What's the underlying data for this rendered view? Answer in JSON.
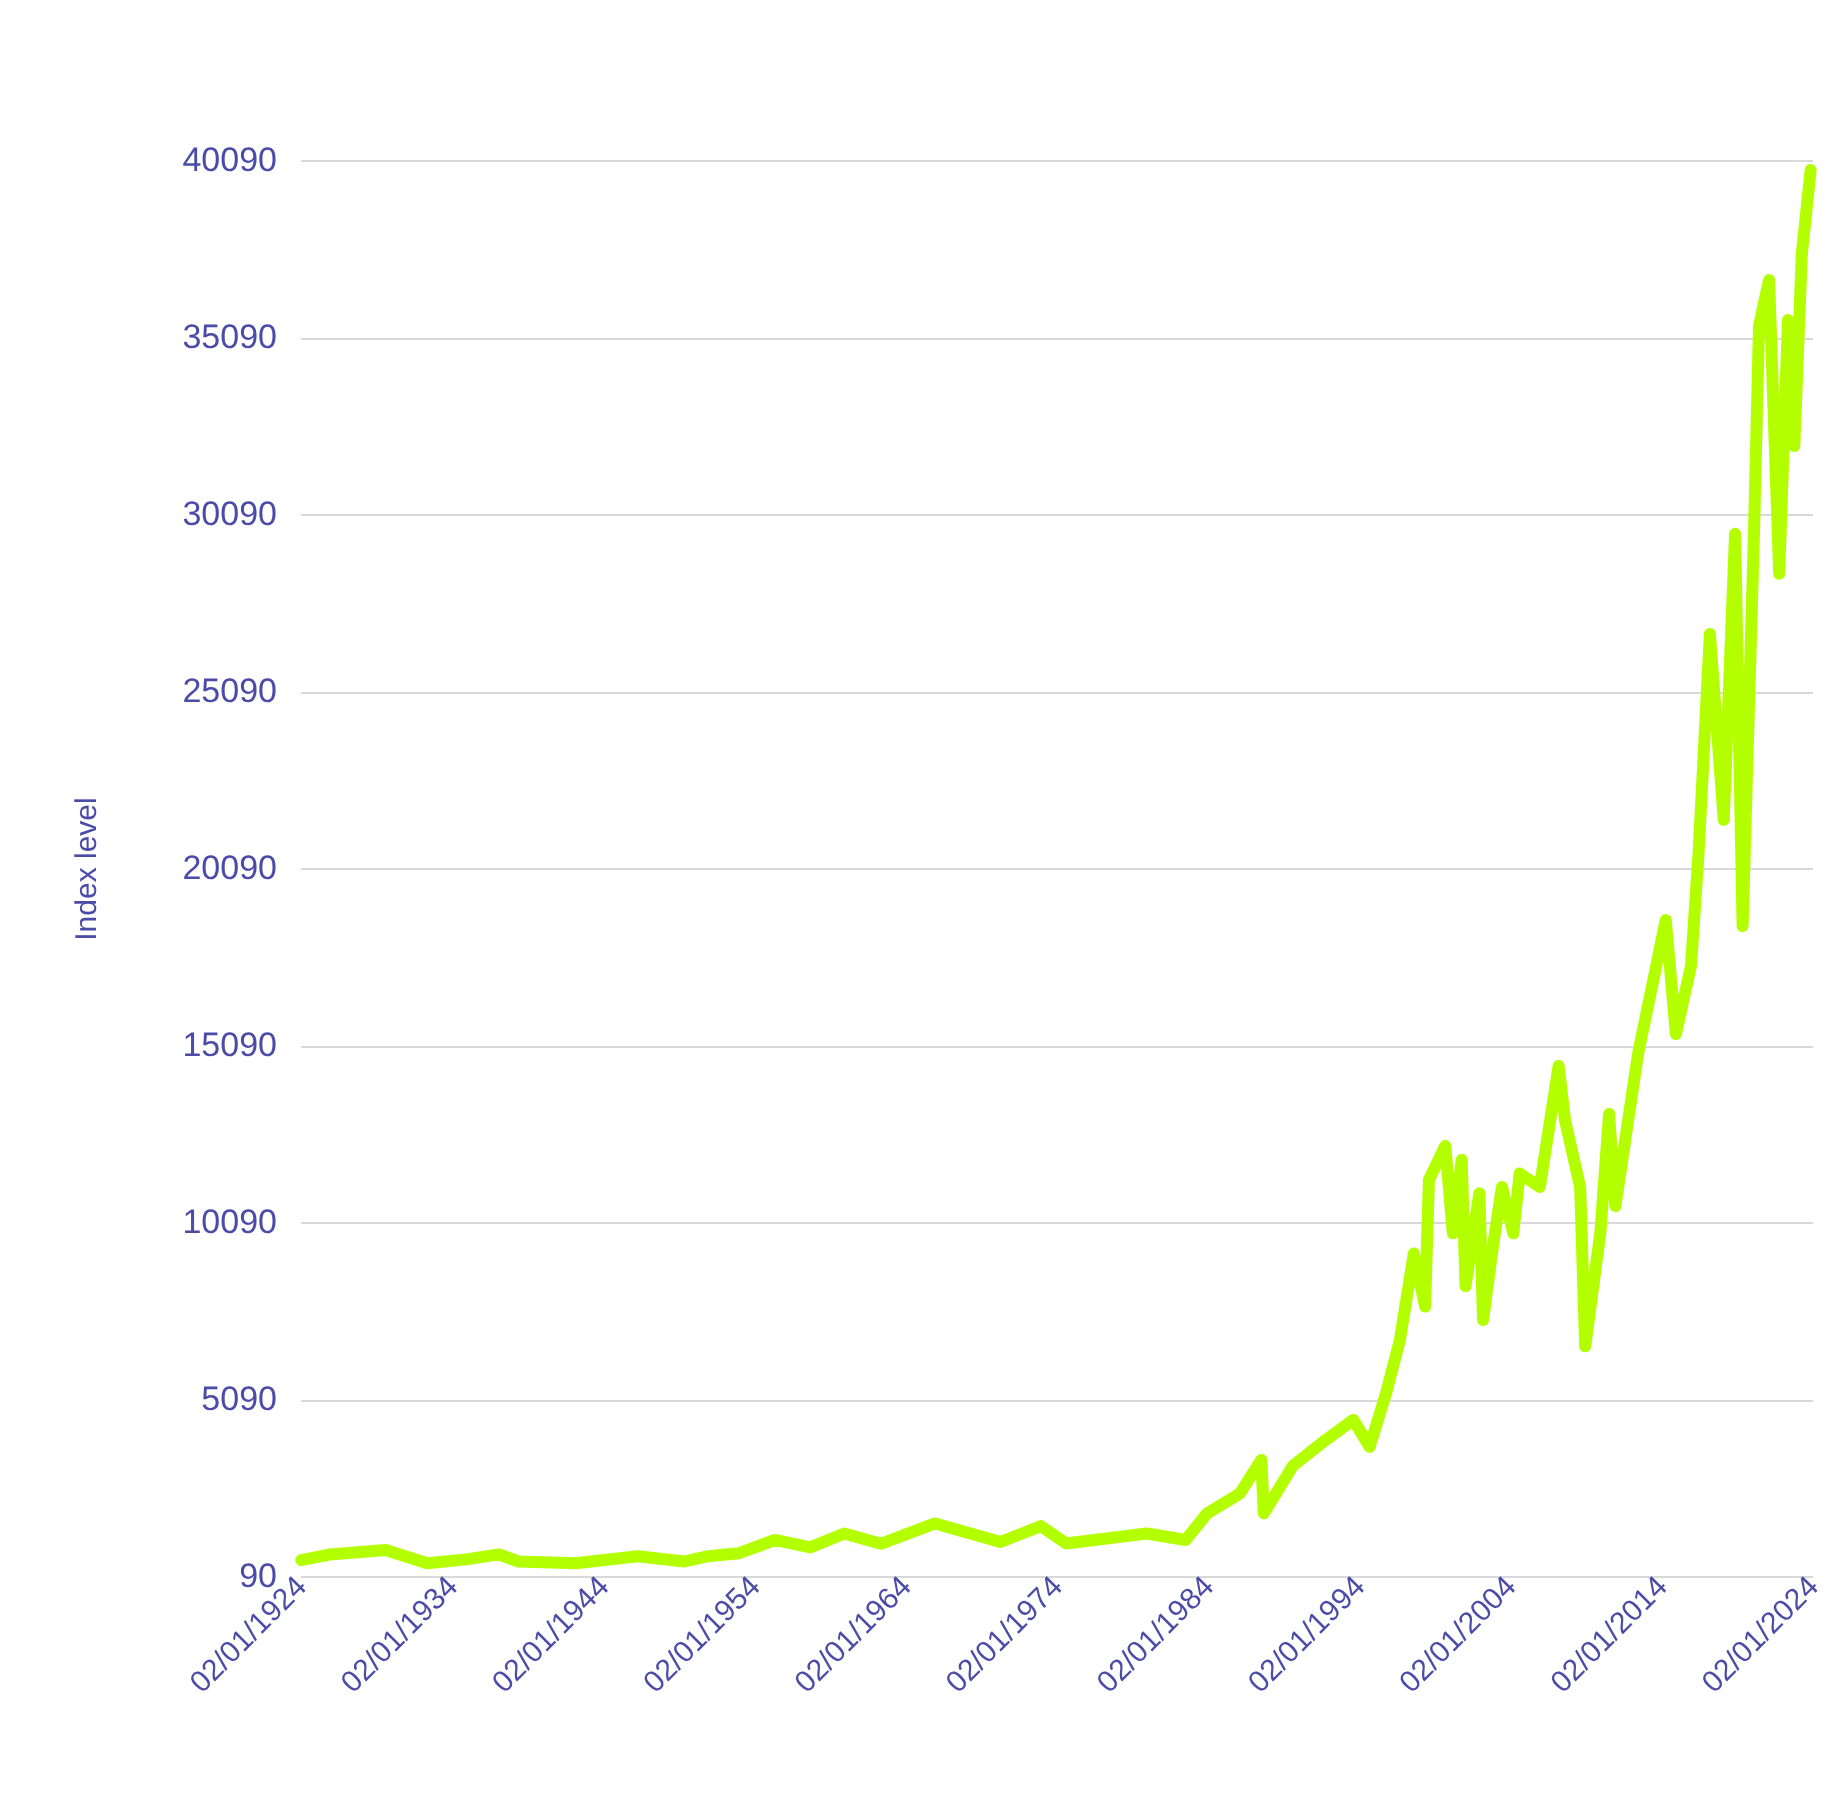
{
  "chart_data": {
    "type": "line",
    "ylabel": "Index level",
    "color": "#b3ff00",
    "grid": "y",
    "x": [
      "1924-02",
      "1926-01",
      "1929-09",
      "1932-06",
      "1935-01",
      "1937-03",
      "1938-06",
      "1942-04",
      "1946-05",
      "1949-06",
      "1951-01",
      "1953-01",
      "1955-06",
      "1957-10",
      "1960-01",
      "1962-06",
      "1966-01",
      "1970-05",
      "1973-01",
      "1974-09",
      "1980-01",
      "1982-08",
      "1984-01",
      "1986-03",
      "1987-08",
      "1987-10",
      "1989-09",
      "1991-11",
      "1993-09",
      "1994-10",
      "1995-11",
      "1996-10",
      "1997-09",
      "1998-06",
      "1998-09",
      "1999-10",
      "2000-04",
      "2000-11",
      "2001-02",
      "2002-01",
      "2002-04",
      "2002-11",
      "2003-07",
      "2004-04",
      "2004-09",
      "2006-01",
      "2007-04",
      "2007-09",
      "2008-09",
      "2009-01",
      "2010-01",
      "2010-08",
      "2011-01",
      "2012-07",
      "2014-05",
      "2015-01",
      "2016-01",
      "2016-07",
      "2017-04",
      "2018-03",
      "2018-12",
      "2019-06",
      "2020-03",
      "2020-07",
      "2021-03",
      "2021-11",
      "2022-06",
      "2022-11",
      "2023-05",
      "2023-12"
    ],
    "values": [
      540,
      700,
      825,
      450,
      560,
      700,
      500,
      450,
      650,
      500,
      650,
      730,
      1107,
      900,
      1290,
      1000,
      1575,
      1050,
      1500,
      1010,
      1290,
      1107,
      1860,
      2420,
      3370,
      1860,
      3200,
      3930,
      4500,
      3740,
      5250,
      6760,
      9200,
      7700,
      11280,
      12240,
      9770,
      11840,
      8280,
      10900,
      7320,
      9200,
      11080,
      9770,
      11460,
      11080,
      14500,
      12970,
      11080,
      6580,
      9770,
      13140,
      10540,
      14840,
      18620,
      15400,
      17320,
      20490,
      26700,
      21450,
      29530,
      18450,
      29530,
      35400,
      36700,
      28400,
      35570,
      32010,
      37440,
      39810
    ],
    "xlim": [
      "1924-01-02",
      "2024-01-02"
    ],
    "xticks": [
      {
        "value": "1924-01-02",
        "label": "02/01/1924"
      },
      {
        "value": "1934-01-02",
        "label": "02/01/1934"
      },
      {
        "value": "1944-01-02",
        "label": "02/01/1944"
      },
      {
        "value": "1954-01-02",
        "label": "02/01/1954"
      },
      {
        "value": "1964-01-02",
        "label": "02/01/1964"
      },
      {
        "value": "1974-01-02",
        "label": "02/01/1974"
      },
      {
        "value": "1984-01-02",
        "label": "02/01/1984"
      },
      {
        "value": "1994-01-02",
        "label": "02/01/1994"
      },
      {
        "value": "2004-01-02",
        "label": "02/01/2004"
      },
      {
        "value": "2014-01-02",
        "label": "02/01/2014"
      },
      {
        "value": "2024-01-02",
        "label": "02/01/2024"
      }
    ],
    "ylim": [
      90,
      40090
    ],
    "yticks": [
      90,
      5090,
      10090,
      15090,
      20090,
      25090,
      30090,
      35090,
      40090
    ]
  }
}
